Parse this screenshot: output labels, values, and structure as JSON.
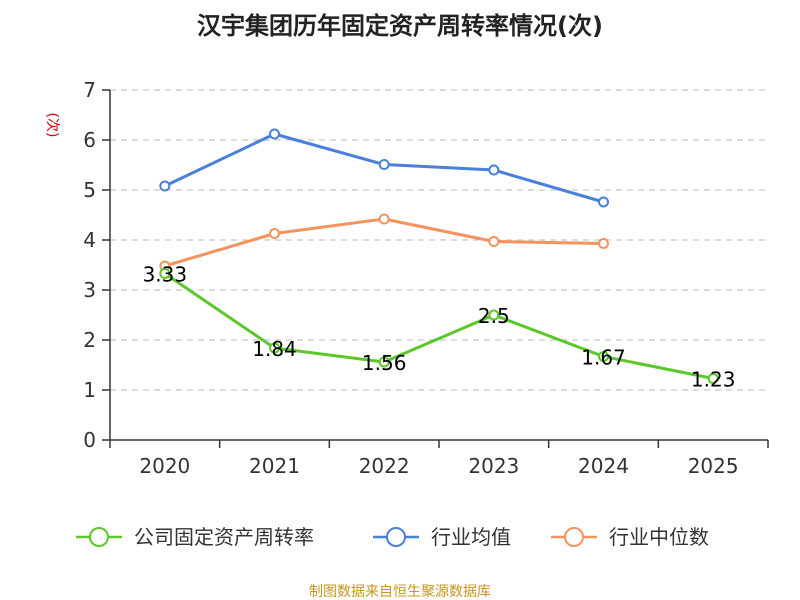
{
  "chart_data": {
    "type": "line",
    "title": "汉宇集团历年固定资产周转率情况(次)",
    "ylabel": "(次)",
    "xlabel": "",
    "categories": [
      "2020",
      "2021",
      "2022",
      "2023",
      "2024",
      "2025"
    ],
    "y_ticks": [
      "0",
      "1",
      "2",
      "3",
      "4",
      "5",
      "6",
      "7"
    ],
    "ylim": [
      0,
      7
    ],
    "grid": true,
    "legend_position": "bottom",
    "series": [
      {
        "name": "公司固定资产周转率",
        "color": "#5cc72a",
        "values": [
          3.33,
          1.84,
          1.56,
          2.5,
          1.67,
          1.23
        ],
        "labels": [
          "3.33",
          "1.84",
          "1.56",
          "2.5",
          "1.67",
          "1.23"
        ]
      },
      {
        "name": "行业均值",
        "color": "#4a7fdc",
        "values": [
          5.08,
          6.12,
          5.51,
          5.4,
          4.76,
          null
        ]
      },
      {
        "name": "行业中位数",
        "color": "#f5925e",
        "values": [
          3.48,
          4.13,
          4.42,
          3.97,
          3.93,
          null
        ]
      }
    ]
  },
  "source_text": "制图数据来自恒生聚源数据库"
}
